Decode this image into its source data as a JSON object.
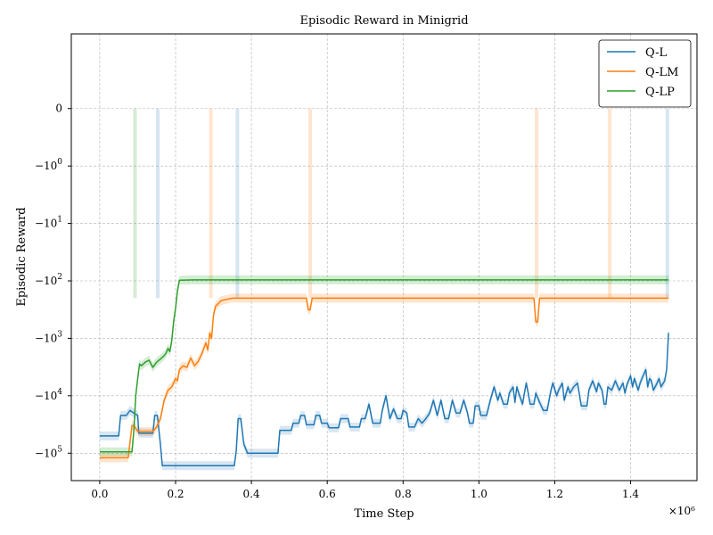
{
  "chart_data": {
    "type": "line",
    "title": "Episodic Reward in Minigrid",
    "xlabel": "Time Step",
    "ylabel": "Episodic Reward",
    "x_multiplier_label": "×10⁶",
    "xlim": [
      -0.075,
      1.575
    ],
    "x_ticks": [
      {
        "value": 0.0,
        "label": "0.0"
      },
      {
        "value": 0.2,
        "label": "0.2"
      },
      {
        "value": 0.4,
        "label": "0.4"
      },
      {
        "value": 0.6,
        "label": "0.6"
      },
      {
        "value": 0.8,
        "label": "0.8"
      },
      {
        "value": 1.0,
        "label": "1.0"
      },
      {
        "value": 1.2,
        "label": "1.2"
      },
      {
        "value": 1.4,
        "label": "1.4"
      }
    ],
    "y_scale": "symlog (negative, linthresh 1)",
    "ylim": [
      -300000,
      1.3
    ],
    "y_ticks": [
      {
        "value": 0,
        "base": "0",
        "exp": ""
      },
      {
        "value": -1,
        "base": "−10",
        "exp": "0"
      },
      {
        "value": -10,
        "base": "−10",
        "exp": "1"
      },
      {
        "value": -100,
        "base": "−10",
        "exp": "2"
      },
      {
        "value": -1000,
        "base": "−10",
        "exp": "3"
      },
      {
        "value": -10000,
        "base": "−10",
        "exp": "4"
      },
      {
        "value": -100000,
        "base": "−10",
        "exp": "5"
      }
    ],
    "grid": true,
    "legend_position": "top-right",
    "series": [
      {
        "name": "Q-L",
        "color": "#1f77b4",
        "points": [
          [
            0.0,
            -50000
          ],
          [
            0.05,
            -50000
          ],
          [
            0.055,
            -22000
          ],
          [
            0.07,
            -22000
          ],
          [
            0.08,
            -18000
          ],
          [
            0.09,
            -20000
          ],
          [
            0.1,
            -22000
          ],
          [
            0.103,
            -45000
          ],
          [
            0.14,
            -45000
          ],
          [
            0.145,
            -22000
          ],
          [
            0.152,
            -22000
          ],
          [
            0.16,
            -70000
          ],
          [
            0.165,
            -165000
          ],
          [
            0.355,
            -165000
          ],
          [
            0.36,
            -90000
          ],
          [
            0.365,
            -25000
          ],
          [
            0.372,
            -25000
          ],
          [
            0.38,
            -70000
          ],
          [
            0.39,
            -100000
          ],
          [
            0.47,
            -100000
          ],
          [
            0.475,
            -40000
          ],
          [
            0.505,
            -40000
          ],
          [
            0.51,
            -30000
          ],
          [
            0.525,
            -30000
          ],
          [
            0.53,
            -22000
          ],
          [
            0.54,
            -22000
          ],
          [
            0.545,
            -32000
          ],
          [
            0.565,
            -32000
          ],
          [
            0.57,
            -22000
          ],
          [
            0.58,
            -22000
          ],
          [
            0.585,
            -30000
          ],
          [
            0.6,
            -30000
          ],
          [
            0.605,
            -36000
          ],
          [
            0.63,
            -36000
          ],
          [
            0.635,
            -25000
          ],
          [
            0.655,
            -25000
          ],
          [
            0.66,
            -35000
          ],
          [
            0.685,
            -35000
          ],
          [
            0.69,
            -25000
          ],
          [
            0.7,
            -25000
          ],
          [
            0.71,
            -14000
          ],
          [
            0.72,
            -30000
          ],
          [
            0.74,
            -30000
          ],
          [
            0.745,
            -18000
          ],
          [
            0.755,
            -10000
          ],
          [
            0.765,
            -25000
          ],
          [
            0.775,
            -17000
          ],
          [
            0.785,
            -25000
          ],
          [
            0.795,
            -25000
          ],
          [
            0.8,
            -18000
          ],
          [
            0.81,
            -20000
          ],
          [
            0.815,
            -35000
          ],
          [
            0.83,
            -35000
          ],
          [
            0.84,
            -25000
          ],
          [
            0.85,
            -30000
          ],
          [
            0.86,
            -25000
          ],
          [
            0.87,
            -20000
          ],
          [
            0.88,
            -12000
          ],
          [
            0.89,
            -22000
          ],
          [
            0.9,
            -12000
          ],
          [
            0.91,
            -25000
          ],
          [
            0.92,
            -25000
          ],
          [
            0.93,
            -12000
          ],
          [
            0.94,
            -20000
          ],
          [
            0.95,
            -20000
          ],
          [
            0.96,
            -12000
          ],
          [
            0.97,
            -20000
          ],
          [
            0.975,
            -30000
          ],
          [
            0.985,
            -30000
          ],
          [
            0.99,
            -15000
          ],
          [
            1.0,
            -15000
          ],
          [
            1.005,
            -22000
          ],
          [
            1.02,
            -22000
          ],
          [
            1.03,
            -12000
          ],
          [
            1.04,
            -7000
          ],
          [
            1.05,
            -12000
          ],
          [
            1.055,
            -9000
          ],
          [
            1.065,
            -14000
          ],
          [
            1.075,
            -14000
          ],
          [
            1.08,
            -9000
          ],
          [
            1.09,
            -7000
          ],
          [
            1.095,
            -13000
          ],
          [
            1.1,
            -7000
          ],
          [
            1.105,
            -9000
          ],
          [
            1.115,
            -14000
          ],
          [
            1.12,
            -9000
          ],
          [
            1.125,
            -6000
          ],
          [
            1.13,
            -9000
          ],
          [
            1.135,
            -14000
          ],
          [
            1.145,
            -14000
          ],
          [
            1.15,
            -9000
          ],
          [
            1.16,
            -13000
          ],
          [
            1.17,
            -18000
          ],
          [
            1.18,
            -18000
          ],
          [
            1.19,
            -8000
          ],
          [
            1.195,
            -6000
          ],
          [
            1.205,
            -10000
          ],
          [
            1.21,
            -8000
          ],
          [
            1.22,
            -6000
          ],
          [
            1.225,
            -12000
          ],
          [
            1.235,
            -7000
          ],
          [
            1.24,
            -9000
          ],
          [
            1.25,
            -7000
          ],
          [
            1.26,
            -6000
          ],
          [
            1.27,
            -15000
          ],
          [
            1.285,
            -15000
          ],
          [
            1.29,
            -8000
          ],
          [
            1.3,
            -5500
          ],
          [
            1.31,
            -8500
          ],
          [
            1.315,
            -6000
          ],
          [
            1.325,
            -8000
          ],
          [
            1.33,
            -14000
          ],
          [
            1.335,
            -14000
          ],
          [
            1.34,
            -7000
          ],
          [
            1.35,
            -8000
          ],
          [
            1.36,
            -5500
          ],
          [
            1.37,
            -8000
          ],
          [
            1.38,
            -6000
          ],
          [
            1.385,
            -9000
          ],
          [
            1.39,
            -6500
          ],
          [
            1.4,
            -4500
          ],
          [
            1.405,
            -7000
          ],
          [
            1.41,
            -5000
          ],
          [
            1.42,
            -8000
          ],
          [
            1.425,
            -6000
          ],
          [
            1.43,
            -5000
          ],
          [
            1.44,
            -3500
          ],
          [
            1.445,
            -7000
          ],
          [
            1.45,
            -5000
          ],
          [
            1.455,
            -5500
          ],
          [
            1.46,
            -8000
          ],
          [
            1.47,
            -6000
          ],
          [
            1.475,
            -5000
          ],
          [
            1.48,
            -7000
          ],
          [
            1.49,
            -5500
          ],
          [
            1.495,
            -3500
          ],
          [
            1.5,
            -800
          ]
        ]
      },
      {
        "name": "Q-LM",
        "color": "#ff7f0e",
        "points": [
          [
            0.0,
            -120000
          ],
          [
            0.075,
            -120000
          ],
          [
            0.085,
            -33000
          ],
          [
            0.09,
            -33000
          ],
          [
            0.1,
            -42000
          ],
          [
            0.14,
            -42000
          ],
          [
            0.15,
            -35000
          ],
          [
            0.16,
            -25000
          ],
          [
            0.17,
            -12000
          ],
          [
            0.18,
            -8000
          ],
          [
            0.19,
            -7000
          ],
          [
            0.2,
            -5000
          ],
          [
            0.205,
            -5500
          ],
          [
            0.21,
            -3500
          ],
          [
            0.22,
            -3000
          ],
          [
            0.23,
            -3200
          ],
          [
            0.24,
            -2200
          ],
          [
            0.25,
            -3000
          ],
          [
            0.26,
            -2500
          ],
          [
            0.27,
            -1800
          ],
          [
            0.28,
            -1200
          ],
          [
            0.285,
            -1600
          ],
          [
            0.29,
            -800
          ],
          [
            0.295,
            -1000
          ],
          [
            0.3,
            -400
          ],
          [
            0.305,
            -280
          ],
          [
            0.32,
            -220
          ],
          [
            0.35,
            -200
          ],
          [
            0.4,
            -200
          ],
          [
            0.5,
            -200
          ],
          [
            0.545,
            -200
          ],
          [
            0.55,
            -320
          ],
          [
            0.555,
            -320
          ],
          [
            0.56,
            -200
          ],
          [
            0.6,
            -200
          ],
          [
            0.8,
            -200
          ],
          [
            1.0,
            -200
          ],
          [
            1.145,
            -200
          ],
          [
            1.15,
            -520
          ],
          [
            1.155,
            -520
          ],
          [
            1.16,
            -200
          ],
          [
            1.3,
            -200
          ],
          [
            1.5,
            -200
          ]
        ]
      },
      {
        "name": "Q-LP",
        "color": "#2ca02c",
        "points": [
          [
            0.0,
            -95000
          ],
          [
            0.085,
            -95000
          ],
          [
            0.09,
            -40000
          ],
          [
            0.095,
            -10000
          ],
          [
            0.1,
            -5000
          ],
          [
            0.105,
            -2800
          ],
          [
            0.11,
            -3000
          ],
          [
            0.12,
            -2600
          ],
          [
            0.13,
            -2400
          ],
          [
            0.14,
            -3200
          ],
          [
            0.15,
            -2600
          ],
          [
            0.16,
            -2300
          ],
          [
            0.17,
            -2000
          ],
          [
            0.175,
            -1800
          ],
          [
            0.18,
            -1500
          ],
          [
            0.185,
            -1700
          ],
          [
            0.19,
            -1100
          ],
          [
            0.195,
            -500
          ],
          [
            0.2,
            -300
          ],
          [
            0.205,
            -150
          ],
          [
            0.21,
            -97
          ],
          [
            0.25,
            -96
          ],
          [
            0.5,
            -96
          ],
          [
            0.8,
            -96
          ],
          [
            1.2,
            -96
          ],
          [
            1.5,
            -96
          ]
        ]
      }
    ],
    "bands": [
      {
        "series": "Q-L",
        "color": "#1f77b4",
        "opacity": 0.18,
        "spikes_x": [
          0.153,
          0.363,
          1.497
        ]
      },
      {
        "series": "Q-LM",
        "color": "#ff7f0e",
        "opacity": 0.2,
        "spikes_x": [
          0.293,
          0.555,
          1.152,
          1.345
        ]
      },
      {
        "series": "Q-LP",
        "color": "#2ca02c",
        "opacity": 0.2,
        "spikes_x": [
          0.093
        ]
      }
    ]
  }
}
